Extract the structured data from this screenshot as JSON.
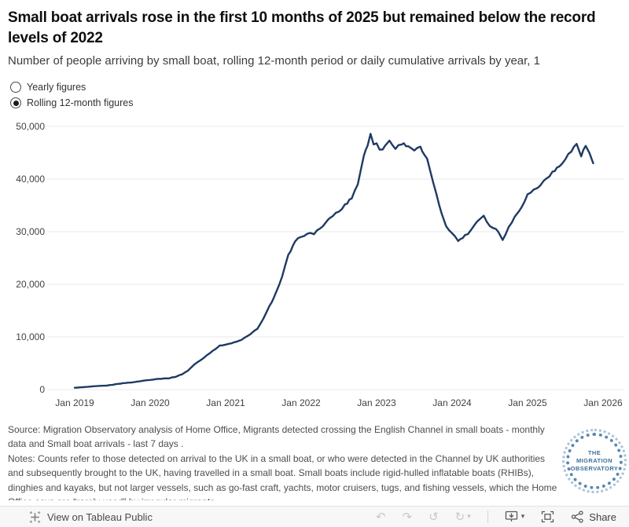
{
  "header": {
    "title": "Small boat arrivals rose in the first 10 months of 2025 but remained below the record levels of 2022",
    "subtitle": "Number of people arriving by small boat, rolling 12-month period or daily cumulative arrivals by year, 1"
  },
  "controls": {
    "options": [
      {
        "label": "Yearly figures",
        "selected": false
      },
      {
        "label": "Rolling 12-month figures",
        "selected": true
      }
    ]
  },
  "chart_data": {
    "type": "line",
    "xlabel": "",
    "ylabel": "",
    "x_ticks": [
      "Jan 2019",
      "Jan 2020",
      "Jan 2021",
      "Jan 2022",
      "Jan 2023",
      "Jan 2024",
      "Jan 2025",
      "Jan 2026"
    ],
    "x_tick_years": [
      2019,
      2020,
      2021,
      2022,
      2023,
      2024,
      2025,
      2026
    ],
    "y_ticks": [
      0,
      10000,
      20000,
      30000,
      40000,
      50000
    ],
    "ylim": [
      0,
      51500
    ],
    "xlim": [
      2018.69,
      2026.27
    ],
    "grid": true,
    "line_color": "#1f3a63",
    "grid_color": "#e8e8e8",
    "axis_text_color": "#424242",
    "series": [
      {
        "name": "Rolling 12-month arrivals",
        "points": [
          [
            2019.0,
            350
          ],
          [
            2019.08,
            420
          ],
          [
            2019.17,
            500
          ],
          [
            2019.25,
            600
          ],
          [
            2019.33,
            680
          ],
          [
            2019.42,
            750
          ],
          [
            2019.5,
            900
          ],
          [
            2019.58,
            1100
          ],
          [
            2019.67,
            1250
          ],
          [
            2019.75,
            1350
          ],
          [
            2019.83,
            1500
          ],
          [
            2019.92,
            1700
          ],
          [
            2020.0,
            1850
          ],
          [
            2020.08,
            2000
          ],
          [
            2020.17,
            2100
          ],
          [
            2020.25,
            2150
          ],
          [
            2020.33,
            2400
          ],
          [
            2020.42,
            2900
          ],
          [
            2020.5,
            3600
          ],
          [
            2020.58,
            4700
          ],
          [
            2020.67,
            5600
          ],
          [
            2020.75,
            6500
          ],
          [
            2020.83,
            7400
          ],
          [
            2020.92,
            8300
          ],
          [
            2021.0,
            8600
          ],
          [
            2021.08,
            8800
          ],
          [
            2021.17,
            9200
          ],
          [
            2021.25,
            9800
          ],
          [
            2021.33,
            10500
          ],
          [
            2021.42,
            11600
          ],
          [
            2021.5,
            13400
          ],
          [
            2021.58,
            15800
          ],
          [
            2021.67,
            18500
          ],
          [
            2021.75,
            21500
          ],
          [
            2021.83,
            25500
          ],
          [
            2021.92,
            28000
          ],
          [
            2022.0,
            29200
          ],
          [
            2022.08,
            29500
          ],
          [
            2022.17,
            29700
          ],
          [
            2022.25,
            30600
          ],
          [
            2022.33,
            31700
          ],
          [
            2022.42,
            33100
          ],
          [
            2022.5,
            33800
          ],
          [
            2022.58,
            35000
          ],
          [
            2022.67,
            36500
          ],
          [
            2022.75,
            39000
          ],
          [
            2022.83,
            44500
          ],
          [
            2022.88,
            46300
          ],
          [
            2022.92,
            48700
          ],
          [
            2022.96,
            46800
          ],
          [
            2023.0,
            47000
          ],
          [
            2023.04,
            45400
          ],
          [
            2023.08,
            45800
          ],
          [
            2023.17,
            47300
          ],
          [
            2023.25,
            45800
          ],
          [
            2023.33,
            46800
          ],
          [
            2023.42,
            46300
          ],
          [
            2023.5,
            45500
          ],
          [
            2023.58,
            46000
          ],
          [
            2023.63,
            44500
          ],
          [
            2023.67,
            43600
          ],
          [
            2023.75,
            39500
          ],
          [
            2023.83,
            34800
          ],
          [
            2023.92,
            31200
          ],
          [
            2024.0,
            29700
          ],
          [
            2024.08,
            28300
          ],
          [
            2024.17,
            29200
          ],
          [
            2024.25,
            30300
          ],
          [
            2024.33,
            32000
          ],
          [
            2024.42,
            33100
          ],
          [
            2024.5,
            31000
          ],
          [
            2024.58,
            30600
          ],
          [
            2024.67,
            28600
          ],
          [
            2024.75,
            30800
          ],
          [
            2024.83,
            32800
          ],
          [
            2024.92,
            34800
          ],
          [
            2025.0,
            37000
          ],
          [
            2025.08,
            37900
          ],
          [
            2025.17,
            38800
          ],
          [
            2025.25,
            40200
          ],
          [
            2025.33,
            41200
          ],
          [
            2025.42,
            42400
          ],
          [
            2025.5,
            44000
          ],
          [
            2025.58,
            45300
          ],
          [
            2025.65,
            46700
          ],
          [
            2025.71,
            44400
          ],
          [
            2025.77,
            46300
          ],
          [
            2025.82,
            44900
          ],
          [
            2025.87,
            43000
          ]
        ]
      }
    ]
  },
  "footer": {
    "source": "Source: Migration Observatory analysis of Home Office, Migrants detected crossing the English Channel in small boats - monthly data and Small boat arrivals - last 7 days .",
    "notes": "Notes:  Counts refer to those detected on arrival to the UK in a small boat, or who were detected in the Channel by UK authorities and subsequently brought to the UK, having travelled in a small boat. Small boats include rigid-hulled inflatable boats (RHIBs), dinghies and kayaks, but not larger vessels, such as go-fast craft, yachts, motor cruisers, tugs, and fishing vessels, which the Home Office says are “rarely used” by irregular migrants.",
    "logo": {
      "line1": "THE",
      "line2": "MIGRATION",
      "line3": "OBSERVATORY"
    }
  },
  "toolbar": {
    "view_label": "View on Tableau Public",
    "share_label": "Share",
    "glyphs": {
      "undo": "↶",
      "redo": "↷",
      "revert": "↺",
      "refresh": "↻",
      "caret": "▾"
    }
  }
}
